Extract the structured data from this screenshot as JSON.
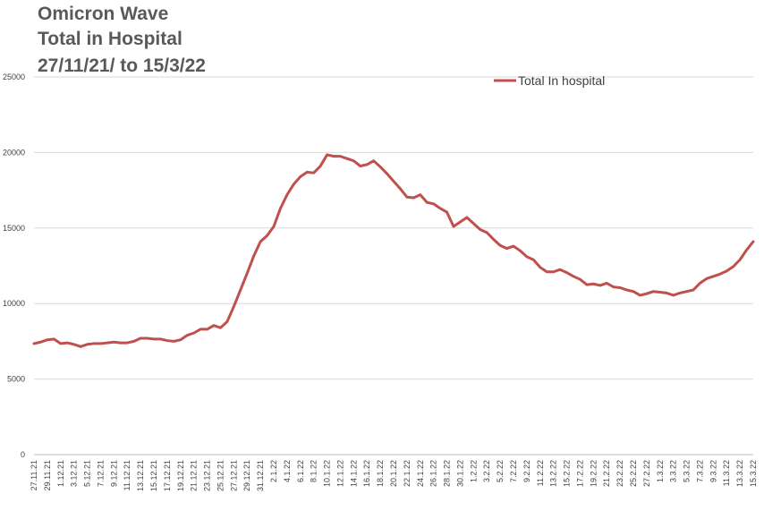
{
  "chart_data": {
    "type": "line",
    "title": [
      "Omicron Wave",
      "Total in Hospital",
      "27/11/21/ to 15/3/22"
    ],
    "xlabel": "",
    "ylabel": "",
    "ylim": [
      0,
      25000
    ],
    "yticks": [
      0,
      5000,
      10000,
      15000,
      20000,
      25000
    ],
    "grid": true,
    "legend_position": "top-right",
    "x_tick_labels": [
      "27.11.21",
      "29.11.21",
      "1.12.21",
      "3.12.21",
      "5.12.21",
      "7.12.21",
      "9.12.21",
      "11.12.21",
      "13.12.21",
      "15.12.21",
      "17.12.21",
      "19.12.21",
      "21.12.21",
      "23.12.21",
      "25.12.21",
      "27.12.21",
      "29.12.21",
      "31.12.21",
      "2.1.22",
      "4.1.22",
      "6.1.22",
      "8.1.22",
      "10.1.22",
      "12.1.22",
      "14.1.22",
      "16.1.22",
      "18.1.22",
      "20.1.22",
      "22.1.22",
      "24.1.22",
      "26.1.22",
      "28.1.22",
      "30.1.22",
      "1.2.22",
      "3.2.22",
      "5.2.22",
      "7.2.22",
      "9.2.22",
      "11.2.22",
      "13.2.22",
      "15.2.22",
      "17.2.22",
      "19.2.22",
      "21.2.22",
      "23.2.22",
      "25.2.22",
      "27.2.22",
      "1.3.22",
      "3.3.22",
      "5.3.22",
      "7.3.22",
      "9.3.22",
      "11.3.22",
      "13.3.22",
      "15.3.22"
    ],
    "series": [
      {
        "name": "Total In hospital",
        "color": "#c0504d",
        "values": [
          7350,
          7450,
          7600,
          7650,
          7350,
          7400,
          7300,
          7150,
          7300,
          7350,
          7350,
          7400,
          7450,
          7400,
          7400,
          7500,
          7700,
          7700,
          7650,
          7650,
          7550,
          7500,
          7600,
          7900,
          8050,
          8300,
          8300,
          8550,
          8400,
          8800,
          9800,
          10900,
          12000,
          13150,
          14100,
          14500,
          15100,
          16300,
          17200,
          17900,
          18400,
          18700,
          18650,
          19100,
          19850,
          19750,
          19750,
          19600,
          19450,
          19100,
          19200,
          19450,
          19050,
          18600,
          18100,
          17600,
          17050,
          17000,
          17200,
          16700,
          16600,
          16300,
          16050,
          15100,
          15400,
          15700,
          15300,
          14900,
          14700,
          14250,
          13850,
          13650,
          13800,
          13500,
          13100,
          12900,
          12400,
          12100,
          12100,
          12250,
          12050,
          11800,
          11600,
          11250,
          11300,
          11200,
          11350,
          11100,
          11050,
          10900,
          10800,
          10550,
          10650,
          10800,
          10750,
          10700,
          10550,
          10700,
          10800,
          10900,
          11350,
          11650,
          11800,
          11950,
          12150,
          12450,
          12900,
          13550,
          14100
        ]
      }
    ]
  }
}
